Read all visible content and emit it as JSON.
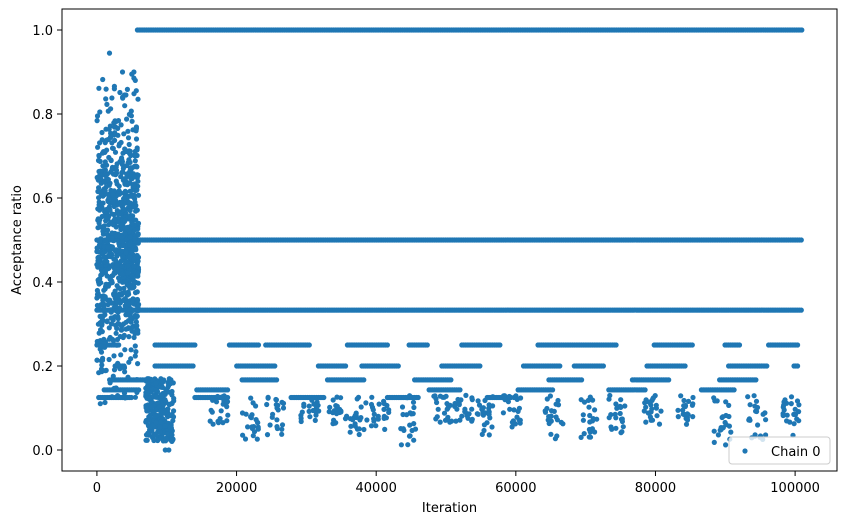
{
  "chart_data": {
    "type": "scatter",
    "title": "",
    "xlabel": "Iteration",
    "ylabel": "Acceptance ratio",
    "xlim": [
      -5000,
      106000
    ],
    "ylim": [
      -0.05,
      1.05
    ],
    "x_ticks": [
      0,
      20000,
      40000,
      60000,
      80000,
      100000
    ],
    "x_tick_labels": [
      "0",
      "20000",
      "40000",
      "60000",
      "80000",
      "100000"
    ],
    "y_ticks": [
      0.0,
      0.2,
      0.4,
      0.6,
      0.8,
      1.0
    ],
    "y_tick_labels": [
      "0.0",
      "0.2",
      "0.4",
      "0.6",
      "0.8",
      "1.0"
    ],
    "grid": false,
    "legend_position": "lower-right",
    "marker_color": "#1f77b4",
    "series": [
      {
        "name": "Chain 0",
        "bands": [
          {
            "y": 1.0,
            "x_start": 5800,
            "x_end": 101000
          },
          {
            "y": 0.5,
            "x_start": 0,
            "x_end": 101000
          },
          {
            "y": 0.333,
            "x_start": 0,
            "x_end": 101000
          },
          {
            "y": 0.25,
            "x_start": 0,
            "x_end": 100500
          },
          {
            "y": 0.2,
            "x_start": 0,
            "x_end": 100500
          },
          {
            "y": 0.167,
            "x_start": 0,
            "x_end": 100300
          },
          {
            "y": 0.143,
            "x_start": 0,
            "x_end": 100200
          },
          {
            "y": 0.125,
            "x_start": 0,
            "x_end": 100000
          }
        ],
        "early_scatter": {
          "x_start": 0,
          "x_end": 6000,
          "y_min": 0.05,
          "y_max": 0.9
        },
        "low_cluster": {
          "x_start": 7000,
          "x_end": 11000,
          "y_min": 0.0,
          "y_max": 0.2
        },
        "points": [
          {
            "x": 1800,
            "y": 0.945
          },
          {
            "x": 5300,
            "y": 0.9
          },
          {
            "x": 5000,
            "y": 0.895
          },
          {
            "x": 5500,
            "y": 0.88
          },
          {
            "x": 2500,
            "y": 0.86
          },
          {
            "x": 9800,
            "y": 0.0
          },
          {
            "x": 10300,
            "y": 0.0
          },
          {
            "x": 34200,
            "y": 0.065
          },
          {
            "x": 55500,
            "y": 0.06
          },
          {
            "x": 99700,
            "y": 0.035
          }
        ]
      }
    ]
  }
}
